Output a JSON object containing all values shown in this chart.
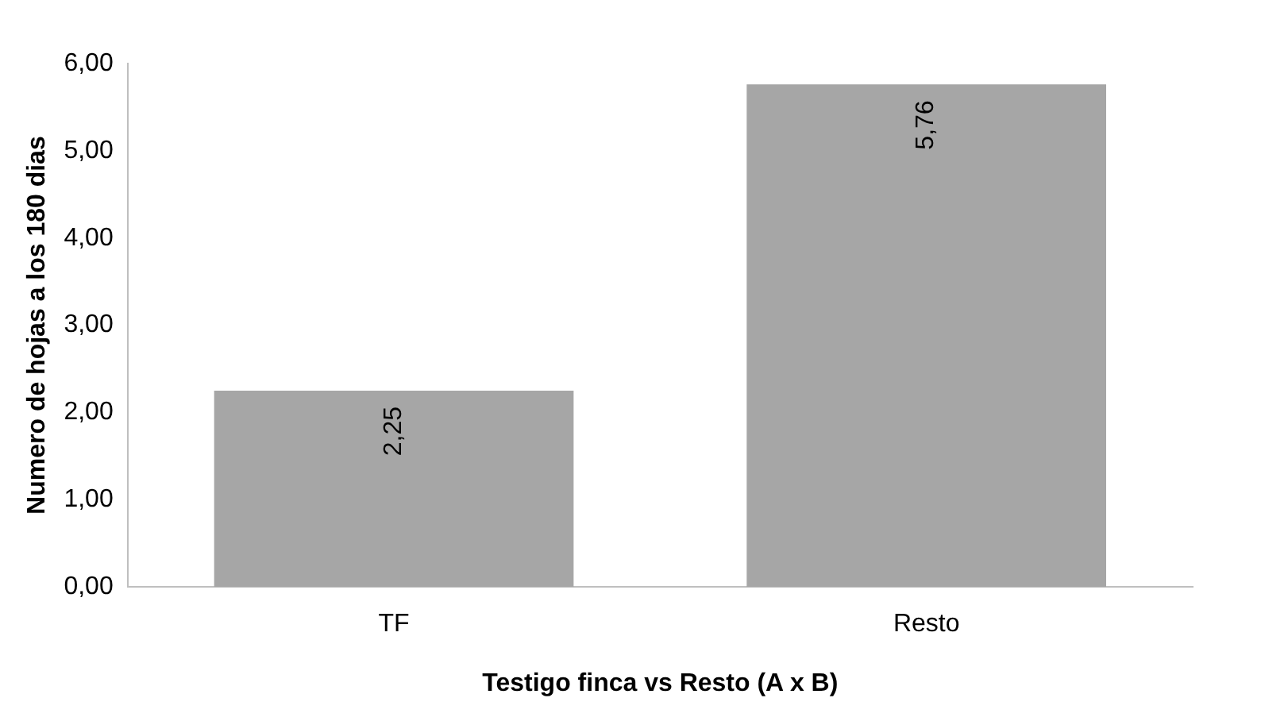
{
  "chart_data": {
    "type": "bar",
    "xlabel": "Testigo finca vs Resto (A x B)",
    "ylabel": "Numero de hojas a los 180 dias",
    "categories": [
      "TF",
      "Resto"
    ],
    "values": [
      2.25,
      5.76
    ],
    "value_labels": [
      "2,25",
      "5,76"
    ],
    "color": "#a6a6a6",
    "ylim": [
      0,
      6
    ],
    "yticks": [
      {
        "value": 0,
        "label": "0,00"
      },
      {
        "value": 1,
        "label": "1,00"
      },
      {
        "value": 2,
        "label": "2,00"
      },
      {
        "value": 3,
        "label": "3,00"
      },
      {
        "value": 4,
        "label": "4,00"
      },
      {
        "value": 5,
        "label": "5,00"
      },
      {
        "value": 6,
        "label": "6,00"
      }
    ],
    "grid": false,
    "legend": false
  }
}
